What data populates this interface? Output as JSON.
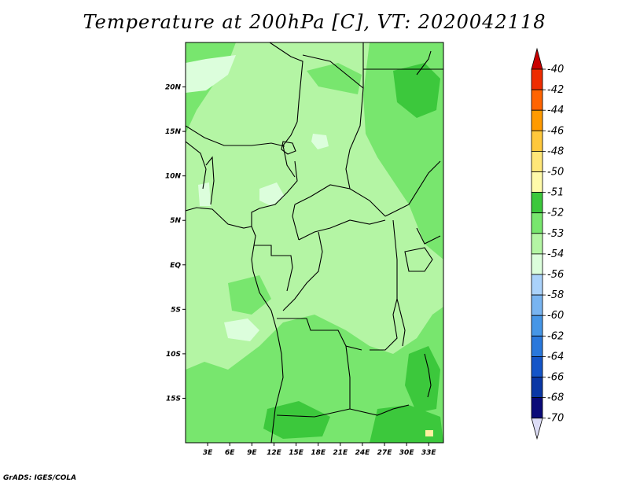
{
  "title": "Temperature at 200hPa [C], VT: 2020042118",
  "credit": "GrADS: IGES/COLA",
  "map": {
    "lat_labels": [
      {
        "label": "20N",
        "lat": 20
      },
      {
        "label": "15N",
        "lat": 15
      },
      {
        "label": "10N",
        "lat": 10
      },
      {
        "label": "5N",
        "lat": 5
      },
      {
        "label": "EQ",
        "lat": 0
      },
      {
        "label": "5S",
        "lat": -5
      },
      {
        "label": "10S",
        "lat": -10
      },
      {
        "label": "15S",
        "lat": -15
      }
    ],
    "lon_labels": [
      {
        "label": "3E",
        "lon": 3
      },
      {
        "label": "6E",
        "lon": 6
      },
      {
        "label": "9E",
        "lon": 9
      },
      {
        "label": "12E",
        "lon": 12
      },
      {
        "label": "15E",
        "lon": 15
      },
      {
        "label": "18E",
        "lon": 18
      },
      {
        "label": "21E",
        "lon": 21
      },
      {
        "label": "24E",
        "lon": 24
      },
      {
        "label": "27E",
        "lon": 27
      },
      {
        "label": "30E",
        "lon": 30
      },
      {
        "label": "33E",
        "lon": 33
      }
    ],
    "lon_range": [
      0,
      35
    ],
    "lat_range": [
      -20,
      25
    ],
    "dominant_range": "-53 to -52",
    "colors": {
      "band_-54_-53": "#dcfedc",
      "band_-53_-52": "#b4f5a4",
      "band_-52_-51": "#78e66e",
      "band_-51_-50": "#3cc83c",
      "warm_spot": "#fff0a0"
    }
  },
  "colorbar": {
    "labels": [
      "-40",
      "-42",
      "-44",
      "-46",
      "-48",
      "-50",
      "-51",
      "-52",
      "-53",
      "-54",
      "-56",
      "-58",
      "-60",
      "-62",
      "-64",
      "-66",
      "-68",
      "-70"
    ],
    "colors": [
      "#c80000",
      "#ee2c00",
      "#ff6400",
      "#ff9a00",
      "#ffc83c",
      "#ffe678",
      "#fffaaa",
      "#3cc83c",
      "#78e66e",
      "#b4f5a4",
      "#dcfedc",
      "#aad2fa",
      "#78b4f0",
      "#4696e6",
      "#2a78dc",
      "#1455c8",
      "#0a37a5",
      "#0a0a78",
      "#dcdcf5"
    ]
  }
}
